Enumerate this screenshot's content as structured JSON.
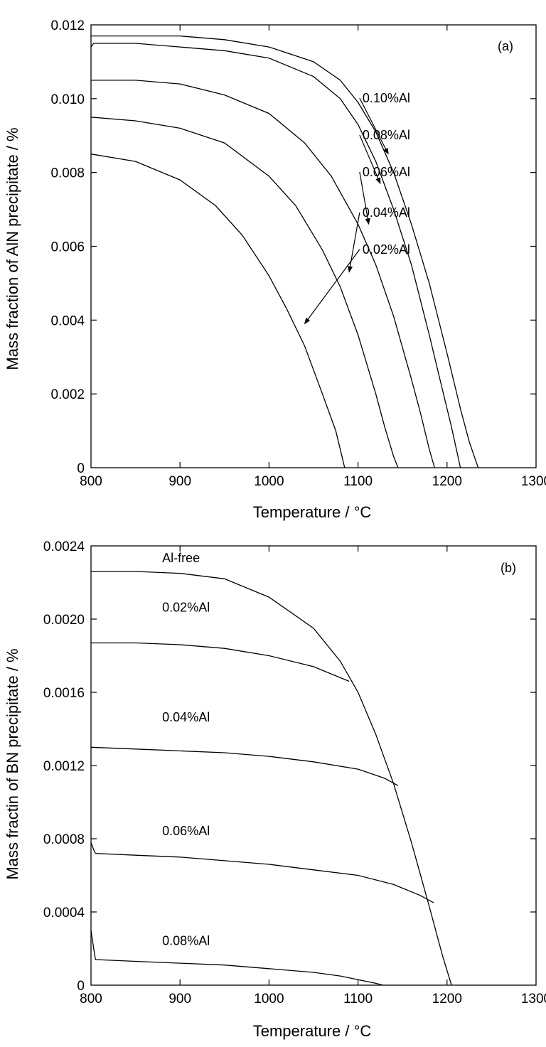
{
  "chart_data": [
    {
      "type": "line",
      "panel_label": "(a)",
      "xlabel": "Temperature / °C",
      "ylabel": "Mass fraction of AlN precipitate  / %",
      "xlim": [
        800,
        1300
      ],
      "ylim": [
        0,
        0.012
      ],
      "xticks": [
        "800",
        "900",
        "1000",
        "1100",
        "1200",
        "1300"
      ],
      "yticks": [
        "0",
        "0.002",
        "0.004",
        "0.006",
        "0.008",
        "0.010",
        "0.012"
      ],
      "grid": false,
      "series": [
        {
          "name": "0.10%Al",
          "x": [
            800,
            850,
            900,
            950,
            1000,
            1050,
            1080,
            1100,
            1120,
            1140,
            1160,
            1180,
            1200,
            1215,
            1225,
            1235
          ],
          "y": [
            0.0117,
            0.0117,
            0.0117,
            0.0116,
            0.0114,
            0.011,
            0.0105,
            0.0099,
            0.0091,
            0.008,
            0.0066,
            0.005,
            0.0031,
            0.0016,
            0.0007,
            0.0
          ],
          "label_xy": [
            1105,
            0.0099
          ],
          "arrow_to": [
            1134,
            0.0085
          ]
        },
        {
          "name": "0.08%Al",
          "x": [
            800,
            803,
            850,
            900,
            950,
            1000,
            1050,
            1080,
            1100,
            1120,
            1140,
            1160,
            1180,
            1195,
            1205,
            1215
          ],
          "y": [
            0.0114,
            0.0115,
            0.0115,
            0.0114,
            0.0113,
            0.0111,
            0.0106,
            0.01,
            0.0093,
            0.0083,
            0.007,
            0.0055,
            0.0036,
            0.0021,
            0.0011,
            0.0
          ],
          "label_xy": [
            1105,
            0.0089
          ],
          "arrow_to": [
            1125,
            0.0077
          ]
        },
        {
          "name": "0.06%Al",
          "x": [
            800,
            850,
            900,
            950,
            1000,
            1040,
            1070,
            1100,
            1120,
            1140,
            1160,
            1170,
            1180,
            1186
          ],
          "y": [
            0.0105,
            0.0105,
            0.0104,
            0.0101,
            0.0096,
            0.0088,
            0.0079,
            0.0066,
            0.0055,
            0.0041,
            0.0024,
            0.0015,
            0.0005,
            0.0
          ],
          "label_xy": [
            1105,
            0.0079
          ],
          "arrow_to": [
            1112,
            0.0066
          ]
        },
        {
          "name": "0.04%Al",
          "x": [
            800,
            850,
            900,
            950,
            1000,
            1030,
            1060,
            1080,
            1100,
            1110,
            1120,
            1130,
            1140,
            1145
          ],
          "y": [
            0.0095,
            0.0094,
            0.0092,
            0.0088,
            0.0079,
            0.0071,
            0.0059,
            0.0049,
            0.0036,
            0.0028,
            0.002,
            0.0011,
            0.0003,
            0.0
          ],
          "label_xy": [
            1105,
            0.0068
          ],
          "arrow_to": [
            1090,
            0.0053
          ]
        },
        {
          "name": "0.02%Al",
          "x": [
            800,
            850,
            900,
            940,
            970,
            1000,
            1020,
            1040,
            1060,
            1075,
            1085
          ],
          "y": [
            0.0085,
            0.0083,
            0.0078,
            0.0071,
            0.0063,
            0.0052,
            0.0043,
            0.0033,
            0.002,
            0.001,
            0.0
          ],
          "label_xy": [
            1105,
            0.0058
          ],
          "arrow_to": [
            1040,
            0.0039
          ]
        }
      ]
    },
    {
      "type": "line",
      "panel_label": "(b)",
      "xlabel": "Temperature / °C",
      "ylabel": "Mass fractin of BN precipitate / %",
      "xlim": [
        800,
        1300
      ],
      "ylim": [
        0,
        0.0024
      ],
      "xticks": [
        "800",
        "900",
        "1000",
        "1100",
        "1200",
        "1300"
      ],
      "yticks": [
        "0",
        "0.0004",
        "0.0008",
        "0.0012",
        "0.0016",
        "0.0020",
        "0.0024"
      ],
      "grid": false,
      "series": [
        {
          "name": "Al-free",
          "x": [
            800,
            850,
            900,
            950,
            1000,
            1050,
            1080,
            1100,
            1120,
            1140,
            1160,
            1180,
            1195,
            1205
          ],
          "y": [
            0.00226,
            0.00226,
            0.00225,
            0.00222,
            0.00212,
            0.00195,
            0.00177,
            0.0016,
            0.00137,
            0.0011,
            0.00078,
            0.00043,
            0.00016,
            0.0
          ],
          "label_xy": [
            880,
            0.00231
          ]
        },
        {
          "name": "0.02%Al",
          "x": [
            800,
            850,
            900,
            950,
            1000,
            1050,
            1080,
            1090
          ],
          "y": [
            0.00187,
            0.00187,
            0.00186,
            0.00184,
            0.0018,
            0.00174,
            0.00168,
            0.00166
          ],
          "label_xy": [
            880,
            0.00204
          ]
        },
        {
          "name": "0.04%Al",
          "x": [
            800,
            850,
            900,
            950,
            1000,
            1050,
            1100,
            1130,
            1145
          ],
          "y": [
            0.0013,
            0.00129,
            0.00128,
            0.00127,
            0.00125,
            0.00122,
            0.00118,
            0.00113,
            0.00109
          ],
          "label_xy": [
            880,
            0.00144
          ]
        },
        {
          "name": "0.06%Al",
          "x": [
            800,
            803,
            805,
            850,
            900,
            950,
            1000,
            1050,
            1100,
            1140,
            1170,
            1185
          ],
          "y": [
            0.00078,
            0.00074,
            0.00072,
            0.00071,
            0.0007,
            0.00068,
            0.00066,
            0.00063,
            0.0006,
            0.00055,
            0.00049,
            0.00045
          ],
          "label_xy": [
            880,
            0.00082
          ]
        },
        {
          "name": "0.08%Al",
          "x": [
            800,
            803,
            805,
            850,
            900,
            950,
            1000,
            1050,
            1080,
            1100,
            1120,
            1128
          ],
          "y": [
            0.0003,
            0.0002,
            0.00014,
            0.00013,
            0.00012,
            0.00011,
            9e-05,
            7e-05,
            5e-05,
            3e-05,
            1e-05,
            0.0
          ],
          "label_xy": [
            880,
            0.00022
          ]
        }
      ]
    }
  ]
}
